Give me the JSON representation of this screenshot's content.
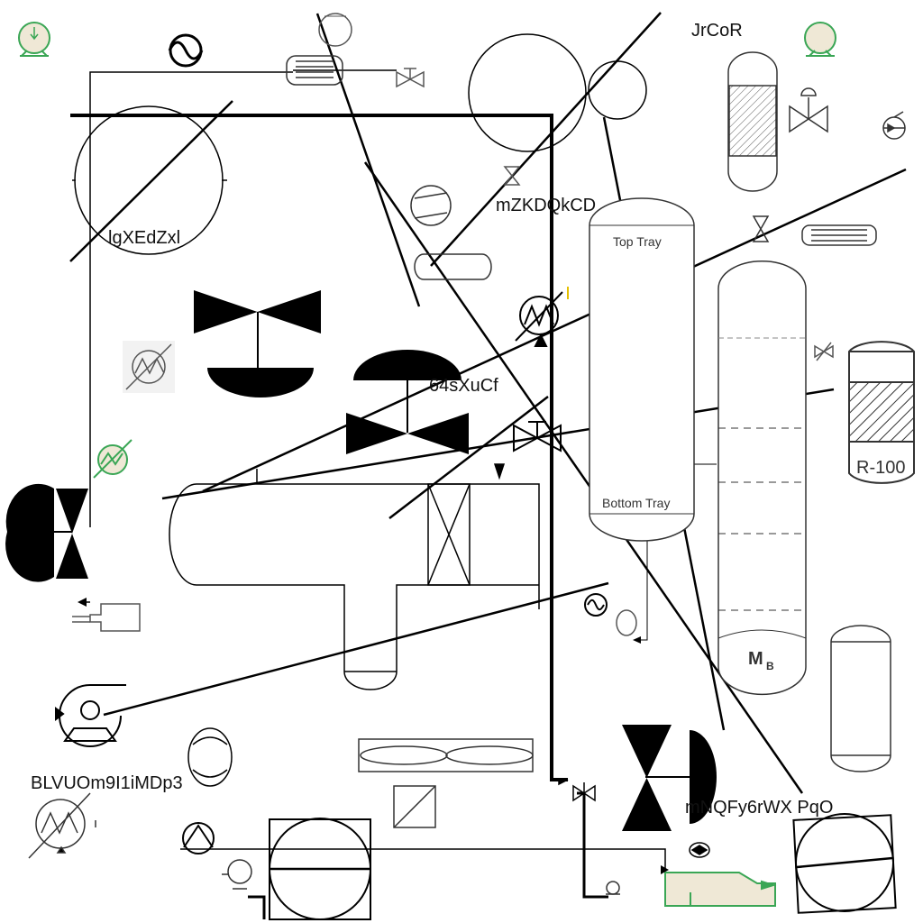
{
  "labels": {
    "l1": "lgXEdZxl",
    "l2": "mZKDQkCD",
    "l3": "JrCoR",
    "l4": "64sXuCf",
    "l5": "BLVUOm9I1iMDp3",
    "l6": "mNQFy6rWX PqO"
  },
  "column_labels": {
    "top_tray": "Top Tray",
    "bottom_tray": "Bottom Tray"
  },
  "reactor_label": "R-100",
  "tower_label": "M",
  "tower_subscript": "B",
  "colors": {
    "line": "#000000",
    "green": "#3aa655",
    "beige": "#efe8d6"
  }
}
